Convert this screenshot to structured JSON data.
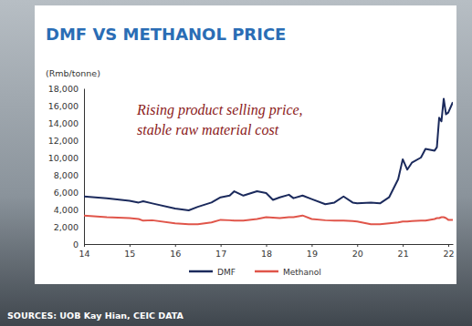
{
  "chart_data": {
    "type": "line",
    "title": "DMF VS METHANOL PRICE",
    "y_label": "(Rmb/tonne)",
    "annotations": [
      "Rising product selling price,",
      "stable raw material cost"
    ],
    "source": "SOURCES: UOB Kay Hian, CEIC DATA",
    "x": [
      14.0,
      14.5,
      15.0,
      15.2,
      15.3,
      15.5,
      16.0,
      16.3,
      16.5,
      16.8,
      17.0,
      17.2,
      17.3,
      17.5,
      17.8,
      18.0,
      18.15,
      18.3,
      18.5,
      18.6,
      18.8,
      19.0,
      19.3,
      19.5,
      19.7,
      19.9,
      20.0,
      20.3,
      20.5,
      20.7,
      20.9,
      21.0,
      21.1,
      21.2,
      21.4,
      21.5,
      21.7,
      21.75,
      21.8,
      21.85,
      21.9,
      21.95,
      22.0,
      22.1
    ],
    "series": [
      {
        "name": "DMF",
        "color": "#1b2a5c",
        "values": [
          5500,
          5300,
          5000,
          4800,
          4950,
          4700,
          4100,
          3900,
          4300,
          4800,
          5400,
          5600,
          6100,
          5600,
          6100,
          5900,
          5100,
          5400,
          5700,
          5300,
          5600,
          5200,
          4600,
          4800,
          5500,
          4800,
          4700,
          4800,
          4700,
          5400,
          7500,
          9800,
          8600,
          9400,
          10000,
          11000,
          10800,
          11200,
          14600,
          14200,
          16800,
          15000,
          15200,
          16400
        ]
      },
      {
        "name": "Methanol",
        "color": "#e0554a",
        "values": [
          3300,
          3100,
          3000,
          2900,
          2700,
          2750,
          2400,
          2300,
          2300,
          2500,
          2800,
          2750,
          2700,
          2700,
          2900,
          3100,
          3050,
          3000,
          3100,
          3100,
          3300,
          2900,
          2750,
          2700,
          2700,
          2650,
          2600,
          2300,
          2300,
          2400,
          2500,
          2600,
          2600,
          2650,
          2700,
          2700,
          2900,
          3000,
          3000,
          3100,
          3100,
          3000,
          2800,
          2800
        ]
      }
    ],
    "xlim": [
      14,
      22.1
    ],
    "xticks": [
      14,
      15,
      16,
      17,
      18,
      19,
      20,
      21,
      22
    ],
    "ylim": [
      0,
      18000
    ],
    "yticks": [
      0,
      {
        "value": 2000,
        "label": "2,000"
      },
      {
        "value": 4000,
        "label": "4,000"
      },
      {
        "value": 6000,
        "label": "6,000"
      },
      {
        "value": 8000,
        "label": "8,000"
      },
      {
        "value": 10000,
        "label": "10,000"
      },
      {
        "value": 12000,
        "label": "12,000"
      },
      {
        "value": 14000,
        "label": "14,000"
      },
      {
        "value": 16000,
        "label": "16,000"
      },
      {
        "value": 18000,
        "label": "18,000"
      }
    ],
    "grid": false,
    "legend": "bottom"
  }
}
